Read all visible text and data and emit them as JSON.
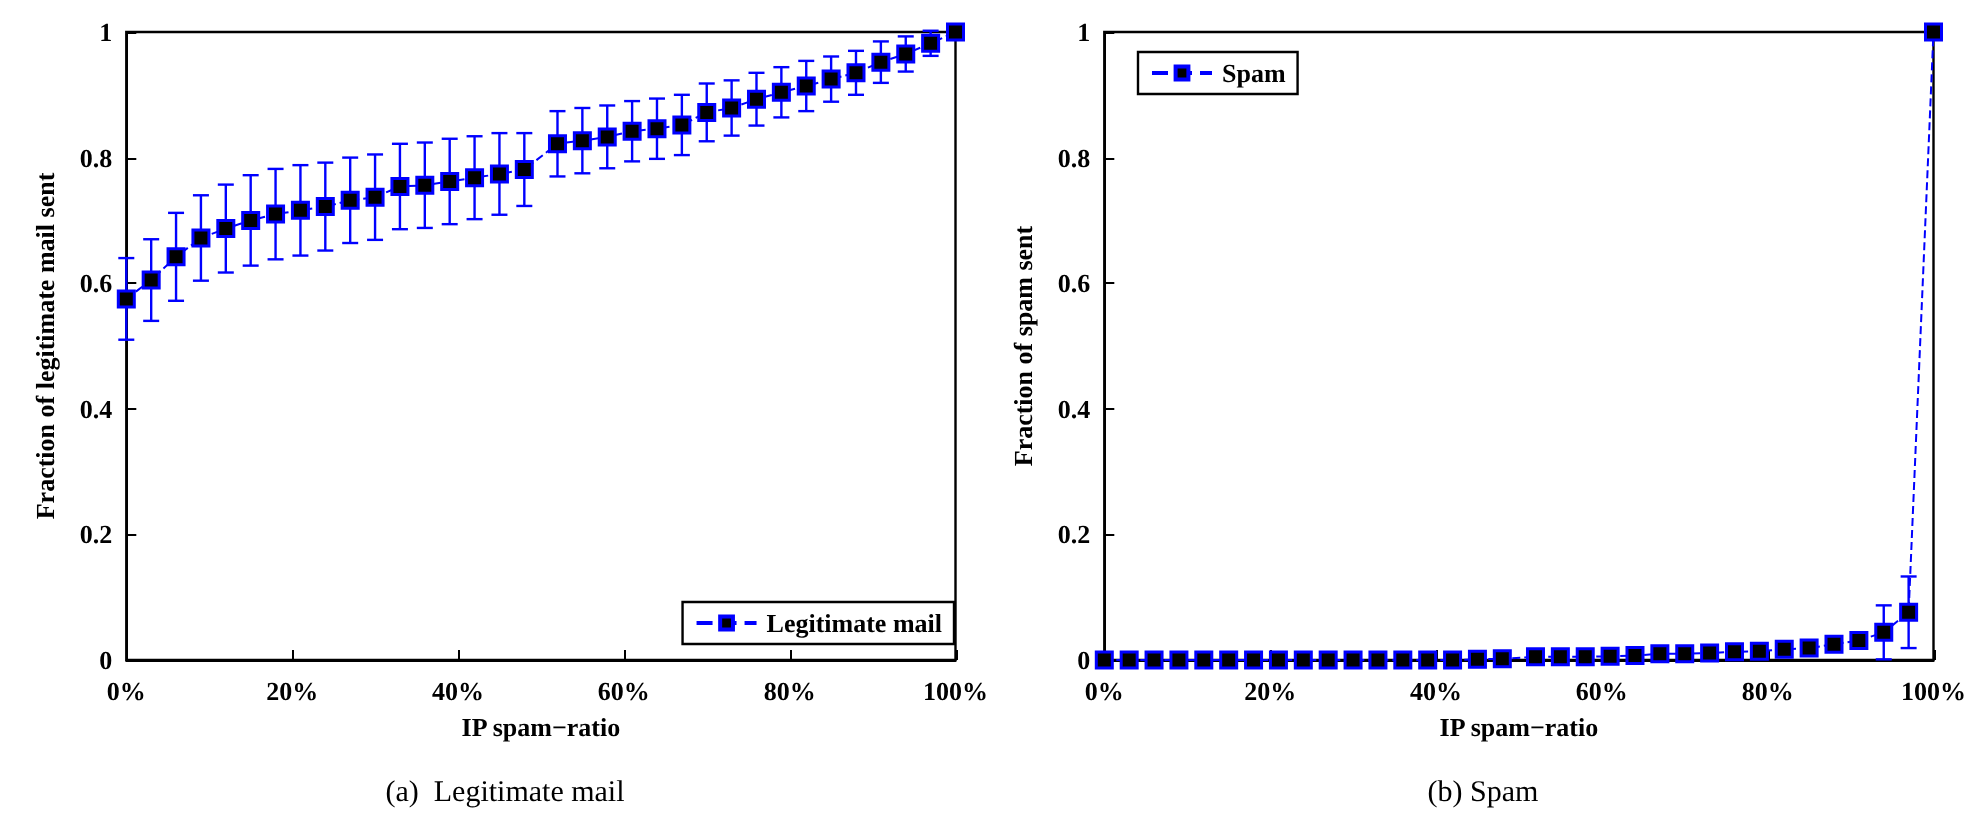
{
  "chart_data": [
    {
      "type": "line",
      "xlabel": "IP spam−ratio",
      "ylabel": "Fraction of legitimate mail sent",
      "annotations": [
        "(a)  Legitimate mail"
      ],
      "xlim": [
        0,
        100
      ],
      "xticks": [
        {
          "value": 0,
          "label": "0%"
        },
        {
          "value": 20,
          "label": "20%"
        },
        {
          "value": 40,
          "label": "40%"
        },
        {
          "value": 60,
          "label": "60%"
        },
        {
          "value": 80,
          "label": "80%"
        },
        {
          "value": 100,
          "label": "100%"
        }
      ],
      "ylim": [
        0,
        1
      ],
      "yticks": [
        0,
        0.2,
        0.4,
        0.6,
        0.8,
        1
      ],
      "grid": false,
      "legend": "bottom right",
      "marker": "square",
      "line_style": "dashed",
      "x": [
        0,
        3,
        6,
        9,
        12,
        15,
        18,
        21,
        24,
        27,
        30,
        33,
        36,
        39,
        42,
        45,
        48,
        52,
        55,
        58,
        61,
        64,
        67,
        70,
        73,
        76,
        79,
        82,
        85,
        88,
        91,
        94,
        97,
        100
      ],
      "series": [
        {
          "name": "Legitimate mail",
          "color": "#0000ff",
          "values": [
            0.575,
            0.605,
            0.642,
            0.672,
            0.687,
            0.7,
            0.71,
            0.716,
            0.722,
            0.732,
            0.737,
            0.754,
            0.756,
            0.762,
            0.768,
            0.774,
            0.781,
            0.822,
            0.827,
            0.833,
            0.842,
            0.846,
            0.852,
            0.872,
            0.879,
            0.893,
            0.904,
            0.914,
            0.925,
            0.935,
            0.952,
            0.965,
            0.982,
            1
          ],
          "errors": [
            0.065,
            0.065,
            0.07,
            0.068,
            0.07,
            0.072,
            0.072,
            0.072,
            0.07,
            0.068,
            0.068,
            0.068,
            0.068,
            0.068,
            0.066,
            0.065,
            0.058,
            0.052,
            0.052,
            0.05,
            0.048,
            0.048,
            0.048,
            0.046,
            0.044,
            0.042,
            0.04,
            0.04,
            0.036,
            0.035,
            0.033,
            0.028,
            0.02,
            null
          ]
        }
      ]
    },
    {
      "type": "line",
      "xlabel": "IP spam−ratio",
      "ylabel": "Fraction of spam sent",
      "annotations": [
        "(b) Spam"
      ],
      "xlim": [
        0,
        100
      ],
      "xticks": [
        {
          "value": 0,
          "label": "0%"
        },
        {
          "value": 20,
          "label": "20%"
        },
        {
          "value": 40,
          "label": "40%"
        },
        {
          "value": 60,
          "label": "60%"
        },
        {
          "value": 80,
          "label": "80%"
        },
        {
          "value": 100,
          "label": "100%"
        }
      ],
      "ylim": [
        0,
        1
      ],
      "yticks": [
        0,
        0.2,
        0.4,
        0.6,
        0.8,
        1
      ],
      "grid": false,
      "legend": "top left",
      "marker": "square",
      "line_style": "dashed",
      "x": [
        0,
        3,
        6,
        9,
        12,
        15,
        18,
        21,
        24,
        27,
        30,
        33,
        36,
        39,
        42,
        45,
        48,
        52,
        55,
        58,
        61,
        64,
        67,
        70,
        73,
        76,
        79,
        82,
        85,
        88,
        91,
        94,
        97,
        100
      ],
      "series": [
        {
          "name": "Spam",
          "color": "#0000ff",
          "values": [
            0,
            0,
            0,
            0,
            0,
            0,
            0,
            0,
            0,
            0,
            0,
            0,
            0,
            0,
            0,
            0.001,
            0.002,
            0.005,
            0.005,
            0.005,
            0.006,
            0.007,
            0.01,
            0.01,
            0.011,
            0.013,
            0.014,
            0.017,
            0.019,
            0.025,
            0.031,
            0.044,
            0.076,
            1
          ],
          "errors": [
            null,
            null,
            null,
            null,
            null,
            null,
            null,
            null,
            null,
            null,
            null,
            null,
            null,
            null,
            null,
            null,
            null,
            null,
            null,
            null,
            null,
            null,
            null,
            null,
            null,
            null,
            null,
            null,
            null,
            null,
            0.01,
            0.043,
            0.057,
            null
          ]
        }
      ]
    }
  ]
}
